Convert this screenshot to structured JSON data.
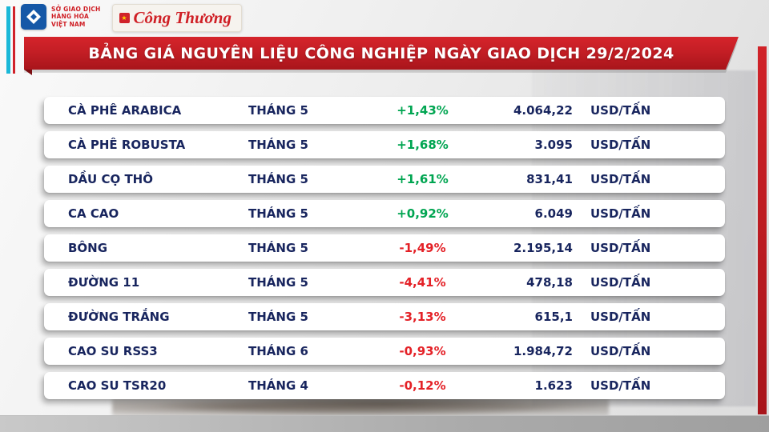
{
  "branding": {
    "mxv": {
      "line1": "SỞ GIAO DỊCH",
      "line2": "HÀNG HÓA",
      "line3": "VIỆT NAM"
    },
    "congthuong": "Công Thương",
    "congthuong_emblem": "★"
  },
  "header": {
    "title": "BẢNG GIÁ NGUYÊN LIỆU CÔNG NGHIỆP NGÀY GIAO DỊCH 29/2/2024"
  },
  "colors": {
    "text_navy": "#18255e",
    "positive_green": "#00a551",
    "negative_red": "#e42127",
    "banner_red": "#c41e25"
  },
  "table": {
    "rows": [
      {
        "name": "CÀ PHÊ ARABICA",
        "month": "THÁNG 5",
        "change": "+1,43%",
        "direction": "up",
        "price": "4.064,22",
        "unit": "USD/TẤN"
      },
      {
        "name": "CÀ PHÊ ROBUSTA",
        "month": "THÁNG 5",
        "change": "+1,68%",
        "direction": "up",
        "price": "3.095",
        "unit": "USD/TẤN"
      },
      {
        "name": "DẦU CỌ THÔ",
        "month": "THÁNG 5",
        "change": "+1,61%",
        "direction": "up",
        "price": "831,41",
        "unit": "USD/TẤN"
      },
      {
        "name": "CA CAO",
        "month": "THÁNG 5",
        "change": "+0,92%",
        "direction": "up",
        "price": "6.049",
        "unit": "USD/TẤN"
      },
      {
        "name": "BÔNG",
        "month": "THÁNG 5",
        "change": "-1,49%",
        "direction": "down",
        "price": "2.195,14",
        "unit": "USD/TẤN"
      },
      {
        "name": "ĐƯỜNG 11",
        "month": "THÁNG 5",
        "change": "-4,41%",
        "direction": "down",
        "price": "478,18",
        "unit": "USD/TẤN"
      },
      {
        "name": "ĐƯỜNG TRẮNG",
        "month": "THÁNG 5",
        "change": "-3,13%",
        "direction": "down",
        "price": "615,1",
        "unit": "USD/TẤN"
      },
      {
        "name": "CAO SU RSS3",
        "month": "THÁNG 6",
        "change": "-0,93%",
        "direction": "down",
        "price": "1.984,72",
        "unit": "USD/TẤN"
      },
      {
        "name": "CAO SU TSR20",
        "month": "THÁNG 4",
        "change": "-0,12%",
        "direction": "down",
        "price": "1.623",
        "unit": "USD/TẤN"
      }
    ]
  },
  "chart_data": {
    "type": "table",
    "title": "BẢNG GIÁ NGUYÊN LIỆU CÔNG NGHIỆP NGÀY GIAO DỊCH 29/2/2024",
    "rows": [
      {
        "commodity": "CÀ PHÊ ARABICA",
        "contract_month": "THÁNG 5",
        "change_pct": 1.43,
        "price": 4064.22,
        "unit": "USD/TẤN"
      },
      {
        "commodity": "CÀ PHÊ ROBUSTA",
        "contract_month": "THÁNG 5",
        "change_pct": 1.68,
        "price": 3095,
        "unit": "USD/TẤN"
      },
      {
        "commodity": "DẦU CỌ THÔ",
        "contract_month": "THÁNG 5",
        "change_pct": 1.61,
        "price": 831.41,
        "unit": "USD/TẤN"
      },
      {
        "commodity": "CA CAO",
        "contract_month": "THÁNG 5",
        "change_pct": 0.92,
        "price": 6049,
        "unit": "USD/TẤN"
      },
      {
        "commodity": "BÔNG",
        "contract_month": "THÁNG 5",
        "change_pct": -1.49,
        "price": 2195.14,
        "unit": "USD/TẤN"
      },
      {
        "commodity": "ĐƯỜNG 11",
        "contract_month": "THÁNG 5",
        "change_pct": -4.41,
        "price": 478.18,
        "unit": "USD/TẤN"
      },
      {
        "commodity": "ĐƯỜNG TRẮNG",
        "contract_month": "THÁNG 5",
        "change_pct": -3.13,
        "price": 615.1,
        "unit": "USD/TẤN"
      },
      {
        "commodity": "CAO SU RSS3",
        "contract_month": "THÁNG 6",
        "change_pct": -0.93,
        "price": 1984.72,
        "unit": "USD/TẤN"
      },
      {
        "commodity": "CAO SU TSR20",
        "contract_month": "THÁNG 4",
        "change_pct": -0.12,
        "price": 1623,
        "unit": "USD/TẤN"
      }
    ]
  }
}
